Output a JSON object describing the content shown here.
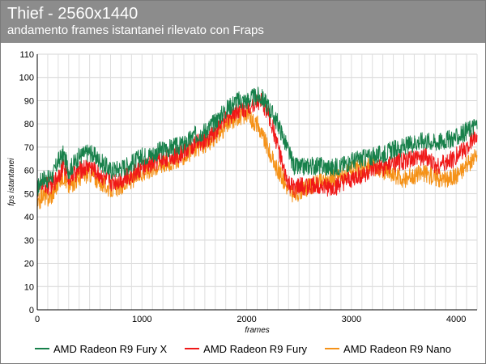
{
  "header": {
    "title": "Thief - 2560x1440",
    "subtitle": "andamento frames istantanei rilevato con Fraps"
  },
  "chart_data": {
    "type": "line",
    "title": "Thief - 2560x1440",
    "subtitle": "andamento frames istantanei rilevato con Fraps",
    "xlabel": "frames",
    "ylabel": "fps istantanei",
    "xlim": [
      0,
      4200
    ],
    "ylim": [
      0,
      110
    ],
    "x_ticks": [
      0,
      1000,
      2000,
      3000,
      4000
    ],
    "y_ticks": [
      0,
      10,
      20,
      30,
      40,
      50,
      60,
      70,
      80,
      90,
      100,
      110
    ],
    "grid": true,
    "legend_position": "bottom",
    "series": [
      {
        "name": "AMD Radeon R9 Fury X",
        "color": "#17804a",
        "x": [
          0,
          50,
          100,
          150,
          200,
          250,
          300,
          400,
          500,
          600,
          700,
          800,
          900,
          1000,
          1100,
          1200,
          1300,
          1400,
          1500,
          1600,
          1700,
          1800,
          1900,
          2000,
          2100,
          2150,
          2200,
          2250,
          2300,
          2350,
          2400,
          2450,
          2500,
          2600,
          2700,
          2800,
          2900,
          3000,
          3100,
          3200,
          3300,
          3400,
          3500,
          3600,
          3700,
          3800,
          3900,
          4000,
          4100,
          4200
        ],
        "y": [
          52,
          57,
          56,
          58,
          64,
          67,
          60,
          66,
          68,
          64,
          60,
          61,
          63,
          66,
          67,
          69,
          70,
          71,
          75,
          77,
          81,
          86,
          90,
          90,
          92,
          91,
          88,
          84,
          80,
          74,
          68,
          62,
          61,
          62,
          62,
          61,
          62,
          64,
          65,
          66,
          67,
          69,
          70,
          72,
          73,
          72,
          73,
          74,
          77,
          80
        ],
        "amplitude": 4
      },
      {
        "name": "AMD Radeon R9 Fury",
        "color": "#f01818",
        "x": [
          0,
          50,
          100,
          150,
          200,
          250,
          300,
          400,
          500,
          600,
          700,
          800,
          900,
          1000,
          1100,
          1200,
          1300,
          1400,
          1500,
          1600,
          1700,
          1800,
          1900,
          2000,
          2100,
          2150,
          2200,
          2250,
          2300,
          2350,
          2400,
          2450,
          2500,
          2600,
          2700,
          2800,
          2900,
          3000,
          3100,
          3200,
          3300,
          3400,
          3500,
          3600,
          3700,
          3800,
          3900,
          4000,
          4100,
          4200
        ],
        "y": [
          50,
          55,
          53,
          54,
          58,
          62,
          57,
          60,
          62,
          58,
          55,
          56,
          58,
          61,
          63,
          65,
          66,
          68,
          71,
          73,
          77,
          82,
          86,
          87,
          90,
          89,
          85,
          78,
          70,
          60,
          54,
          52,
          53,
          53,
          54,
          52,
          54,
          56,
          58,
          60,
          61,
          63,
          64,
          65,
          66,
          62,
          63,
          66,
          70,
          76
        ],
        "amplitude": 4
      },
      {
        "name": "AMD Radeon R9 Nano",
        "color": "#f59218",
        "x": [
          0,
          50,
          100,
          150,
          200,
          250,
          300,
          400,
          500,
          600,
          700,
          800,
          900,
          1000,
          1100,
          1200,
          1300,
          1400,
          1500,
          1600,
          1700,
          1800,
          1900,
          2000,
          2100,
          2150,
          2200,
          2250,
          2300,
          2350,
          2400,
          2450,
          2500,
          2600,
          2700,
          2800,
          2900,
          3000,
          3100,
          3200,
          3300,
          3400,
          3500,
          3600,
          3700,
          3800,
          3900,
          4000,
          4100,
          4200
        ],
        "y": [
          44,
          50,
          48,
          50,
          55,
          58,
          53,
          57,
          59,
          55,
          52,
          53,
          56,
          59,
          61,
          63,
          64,
          66,
          69,
          71,
          74,
          79,
          83,
          84,
          80,
          75,
          70,
          64,
          60,
          56,
          52,
          49,
          51,
          53,
          55,
          56,
          58,
          60,
          61,
          62,
          60,
          58,
          56,
          58,
          59,
          57,
          56,
          58,
          62,
          66
        ],
        "amplitude": 4
      }
    ]
  }
}
